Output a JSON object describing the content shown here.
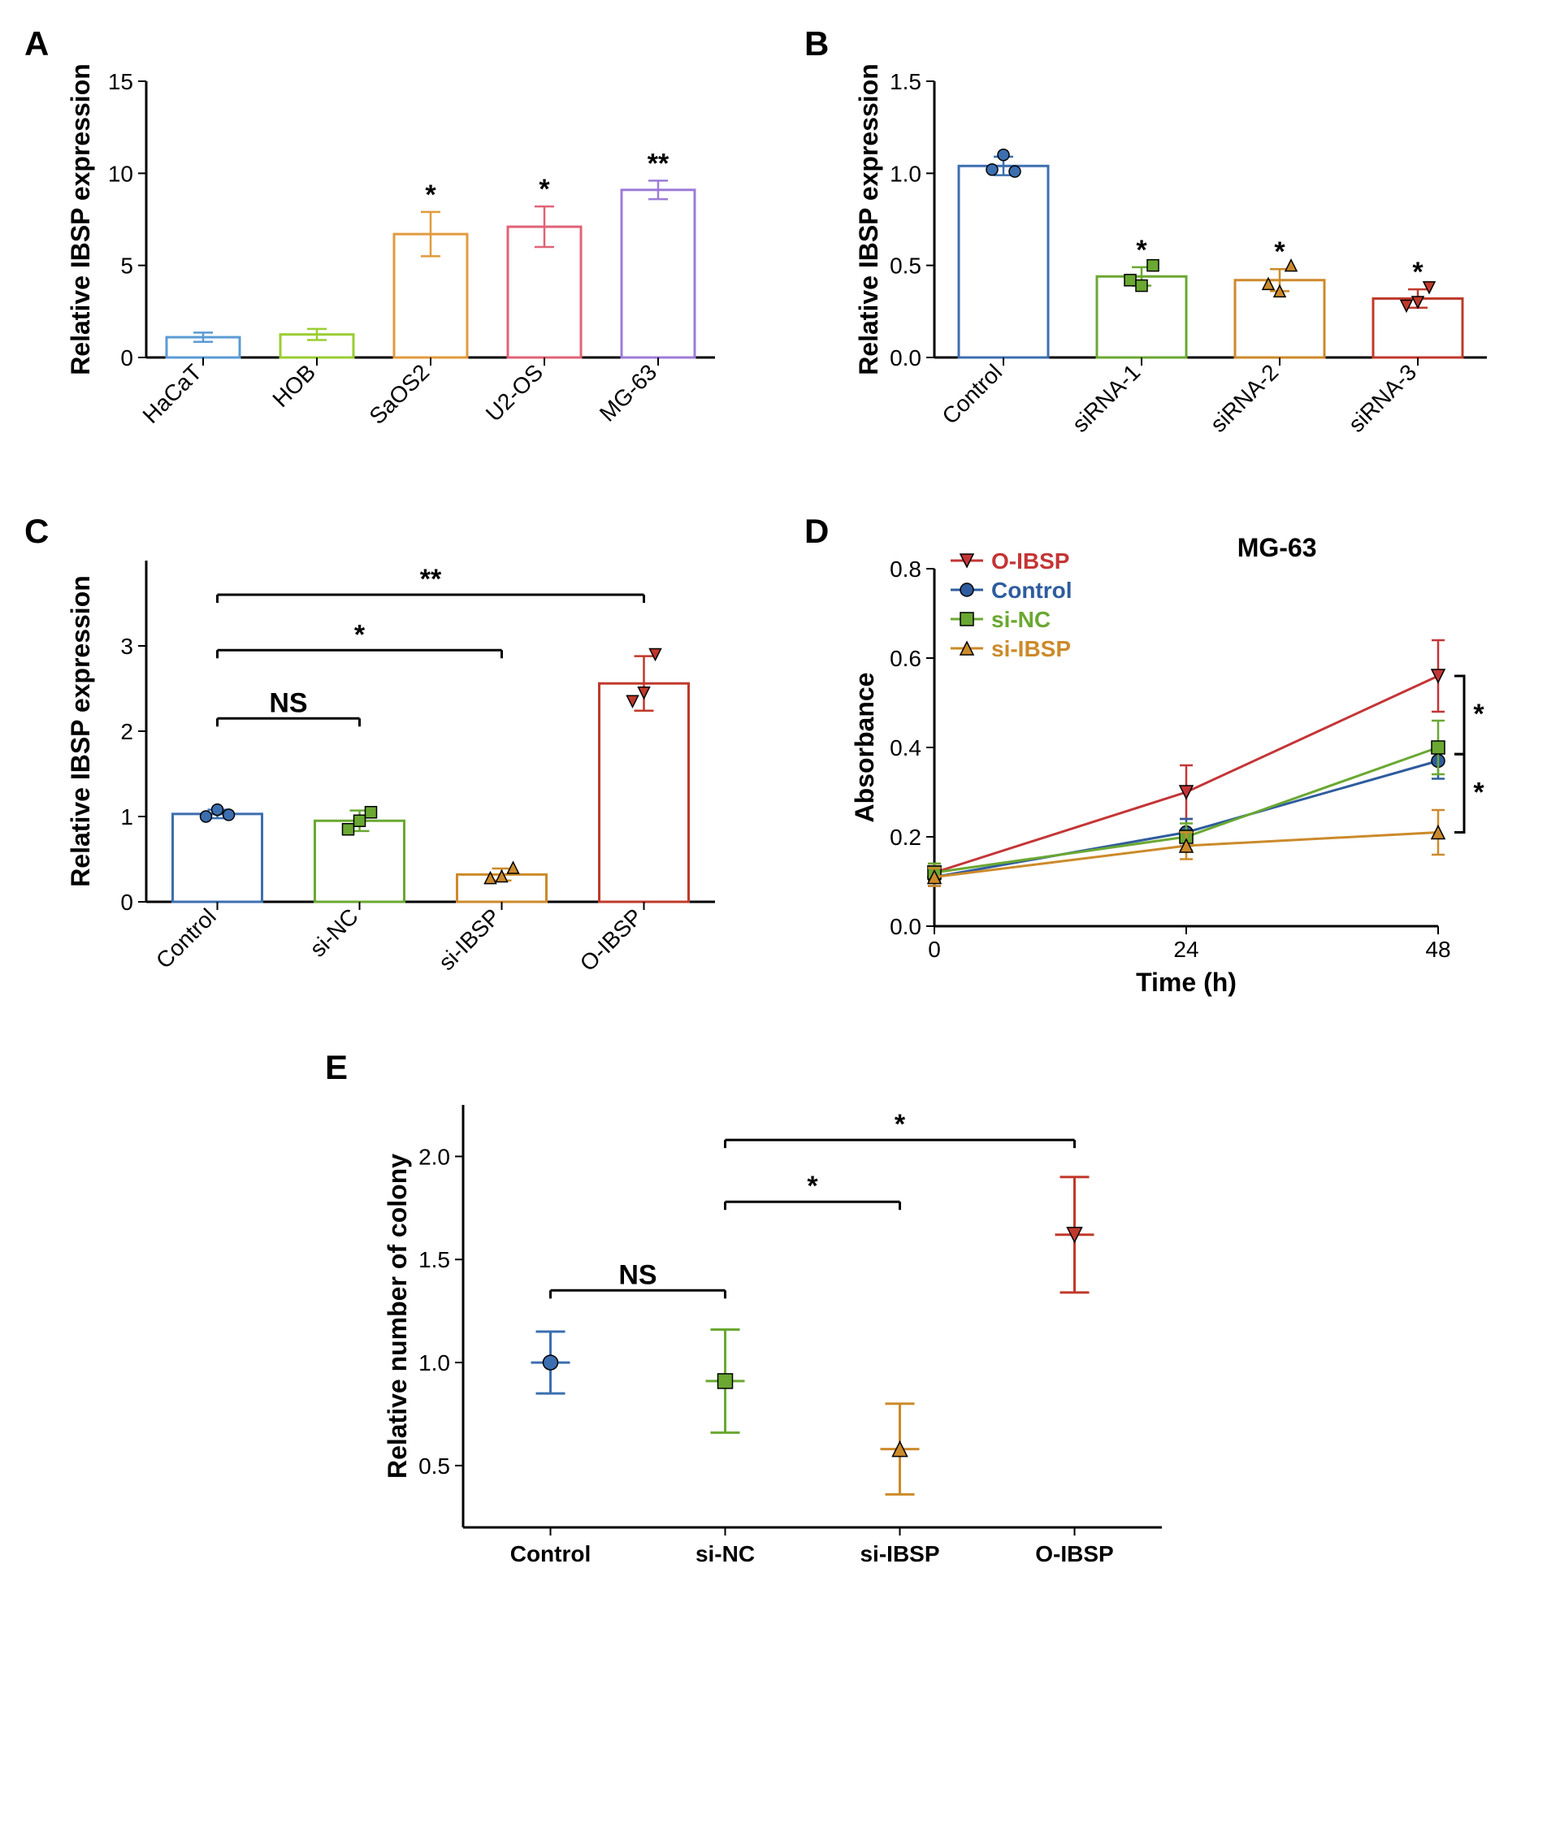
{
  "panelA": {
    "label": "A",
    "type": "bar",
    "ylabel": "Relative IBSP expression",
    "ylim": [
      0,
      15
    ],
    "yticks": [
      0,
      5,
      10,
      15
    ],
    "categories": [
      "HaCaT",
      "HOB",
      "SaOS2",
      "U2-OS",
      "MG-63"
    ],
    "values": [
      1.1,
      1.25,
      6.7,
      7.1,
      9.1
    ],
    "err": [
      0.25,
      0.3,
      1.2,
      1.1,
      0.5
    ],
    "colors": [
      "#5b9bd5",
      "#9acd32",
      "#e29a3e",
      "#e06377",
      "#9d7bd8"
    ],
    "sig": [
      "",
      "",
      "*",
      "*",
      "**"
    ],
    "bar_stroke_width": 3,
    "label_fontsize": 28,
    "title_fontsize": 32,
    "background_color": "#ffffff",
    "axis_color": "#000000",
    "text_color": "#000000"
  },
  "panelB": {
    "label": "B",
    "type": "bar",
    "ylabel": "Relative IBSP expression",
    "ylim": [
      0,
      1.5
    ],
    "yticks": [
      0.0,
      0.5,
      1.0,
      1.5
    ],
    "categories": [
      "Control",
      "siRNA-1",
      "siRNA-2",
      "siRNA-3"
    ],
    "values": [
      1.04,
      0.44,
      0.42,
      0.32
    ],
    "err": [
      0.05,
      0.05,
      0.06,
      0.05
    ],
    "colors": [
      "#3c6fb0",
      "#6aa832",
      "#cc8a2a",
      "#c0392b"
    ],
    "sig": [
      "",
      "*",
      "*",
      "*"
    ],
    "scatter": [
      [
        1.02,
        1.1,
        1.01
      ],
      [
        0.42,
        0.39,
        0.5
      ],
      [
        0.4,
        0.36,
        0.5
      ],
      [
        0.28,
        0.3,
        0.38
      ]
    ],
    "label_fontsize": 28,
    "title_fontsize": 32,
    "background_color": "#ffffff"
  },
  "panelC": {
    "label": "C",
    "type": "bar",
    "ylabel": "Relative IBSP expression",
    "ylim": [
      0,
      4
    ],
    "yticks": [
      0,
      1,
      2,
      3
    ],
    "categories": [
      "Control",
      "si-NC",
      "si-IBSP",
      "O-IBSP"
    ],
    "values": [
      1.03,
      0.95,
      0.32,
      2.56
    ],
    "err": [
      0.05,
      0.12,
      0.07,
      0.32
    ],
    "colors": [
      "#3c6fb0",
      "#6aa832",
      "#cc8a2a",
      "#c0392b"
    ],
    "scatter": [
      [
        1.0,
        1.08,
        1.02
      ],
      [
        0.85,
        0.95,
        1.05
      ],
      [
        0.28,
        0.3,
        0.4
      ],
      [
        2.35,
        2.45,
        2.9
      ]
    ],
    "markers": [
      "circle",
      "square",
      "triangle-up",
      "triangle-down"
    ],
    "siglines": [
      {
        "from": 0,
        "to": 1,
        "level": 2.15,
        "label": "NS"
      },
      {
        "from": 0,
        "to": 2,
        "level": 2.95,
        "label": "*"
      },
      {
        "from": 0,
        "to": 3,
        "level": 3.6,
        "label": "**"
      }
    ],
    "label_fontsize": 28,
    "title_fontsize": 32
  },
  "panelD": {
    "label": "D",
    "type": "line",
    "title": "MG-63",
    "ylabel": "Absorbance",
    "xlabel": "Time (h)",
    "xlim": [
      0,
      48
    ],
    "xticks": [
      0,
      24,
      48
    ],
    "ylim": [
      0,
      0.8
    ],
    "yticks": [
      0.0,
      0.2,
      0.4,
      0.6,
      0.8
    ],
    "series": [
      {
        "name": "O-IBSP",
        "color": "#c43536",
        "marker": "triangle-down",
        "x": [
          0,
          24,
          48
        ],
        "y": [
          0.12,
          0.3,
          0.56
        ],
        "err": [
          0.02,
          0.06,
          0.08
        ]
      },
      {
        "name": "Control",
        "color": "#2e5c9e",
        "marker": "circle",
        "x": [
          0,
          24,
          48
        ],
        "y": [
          0.11,
          0.21,
          0.37
        ],
        "err": [
          0.02,
          0.03,
          0.04
        ]
      },
      {
        "name": "si-NC",
        "color": "#6aa832",
        "marker": "square",
        "x": [
          0,
          24,
          48
        ],
        "y": [
          0.12,
          0.2,
          0.4
        ],
        "err": [
          0.02,
          0.03,
          0.06
        ]
      },
      {
        "name": "si-IBSP",
        "color": "#cc8a2a",
        "marker": "triangle-up",
        "x": [
          0,
          24,
          48
        ],
        "y": [
          0.11,
          0.18,
          0.21
        ],
        "err": [
          0.02,
          0.03,
          0.05
        ]
      }
    ],
    "right_brackets": [
      {
        "label": "*"
      },
      {
        "label": "*"
      }
    ],
    "label_fontsize": 28,
    "title_fontsize": 32
  },
  "panelE": {
    "label": "E",
    "type": "pointrange",
    "ylabel": "Relative number of colony",
    "ylim": [
      0,
      2.0
    ],
    "yticks": [
      0.5,
      1.0,
      1.5,
      2.0
    ],
    "categories": [
      "Control",
      "si-NC",
      "si-IBSP",
      "O-IBSP"
    ],
    "values": [
      1.0,
      0.91,
      0.58,
      1.62
    ],
    "err": [
      0.15,
      0.25,
      0.22,
      0.28
    ],
    "colors": [
      "#3c6fb0",
      "#6aa832",
      "#cc8a2a",
      "#c0392b"
    ],
    "markers": [
      "circle",
      "square",
      "triangle-up",
      "triangle-down"
    ],
    "siglines": [
      {
        "from": 0,
        "to": 1,
        "level": 1.35,
        "label": "NS"
      },
      {
        "from": 1,
        "to": 2,
        "level": 1.78,
        "label": "*"
      },
      {
        "from": 1,
        "to": 3,
        "level": 2.08,
        "label": "*"
      }
    ],
    "label_fontsize": 28,
    "title_fontsize": 32
  }
}
